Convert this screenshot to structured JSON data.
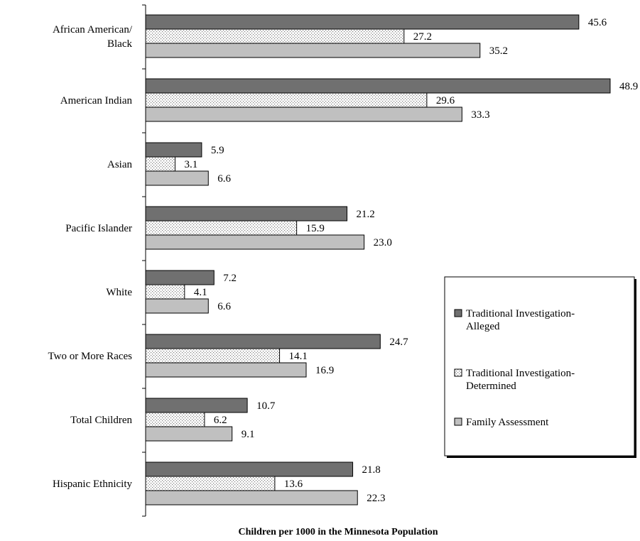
{
  "chart_data": {
    "type": "bar",
    "orientation": "horizontal",
    "xlabel": "Children per 1000 in the Minnesota Population",
    "xlim": [
      0,
      50
    ],
    "grid": false,
    "legend_position": "right",
    "categories": [
      [
        "African American/",
        "Black"
      ],
      [
        "American Indian"
      ],
      [
        "Asian"
      ],
      [
        "Pacific Islander"
      ],
      [
        "White"
      ],
      [
        "Two or More Races"
      ],
      [
        "Total Children"
      ],
      [
        "Hispanic Ethnicity"
      ]
    ],
    "series": [
      {
        "name": [
          "Traditional Investigation-",
          "Alleged"
        ],
        "color": "#707070",
        "pattern": "solid-dark",
        "values": [
          45.6,
          48.9,
          5.9,
          21.2,
          7.2,
          24.7,
          10.7,
          21.8
        ],
        "labels": [
          "45.6",
          "48.9",
          "5.9",
          "21.2",
          "7.2",
          "24.7",
          "10.7",
          "21.8"
        ]
      },
      {
        "name": [
          "Traditional Investigation-",
          "Determined"
        ],
        "color": "#ffffff",
        "pattern": "dotted",
        "values": [
          27.2,
          29.6,
          3.1,
          15.9,
          4.1,
          14.1,
          6.2,
          13.6
        ],
        "labels": [
          "27.2",
          "29.6",
          "3.1",
          "15.9",
          "4.1",
          "14.1",
          "6.2",
          "13.6"
        ]
      },
      {
        "name": [
          "Family Assessment"
        ],
        "color": "#c0c0c0",
        "pattern": "solid-light",
        "values": [
          35.2,
          33.3,
          6.6,
          23.0,
          6.6,
          16.9,
          9.1,
          22.3
        ],
        "labels": [
          "35.2",
          "33.3",
          "6.6",
          "23.0",
          "6.6",
          "16.9",
          "9.1",
          "22.3"
        ]
      }
    ]
  }
}
